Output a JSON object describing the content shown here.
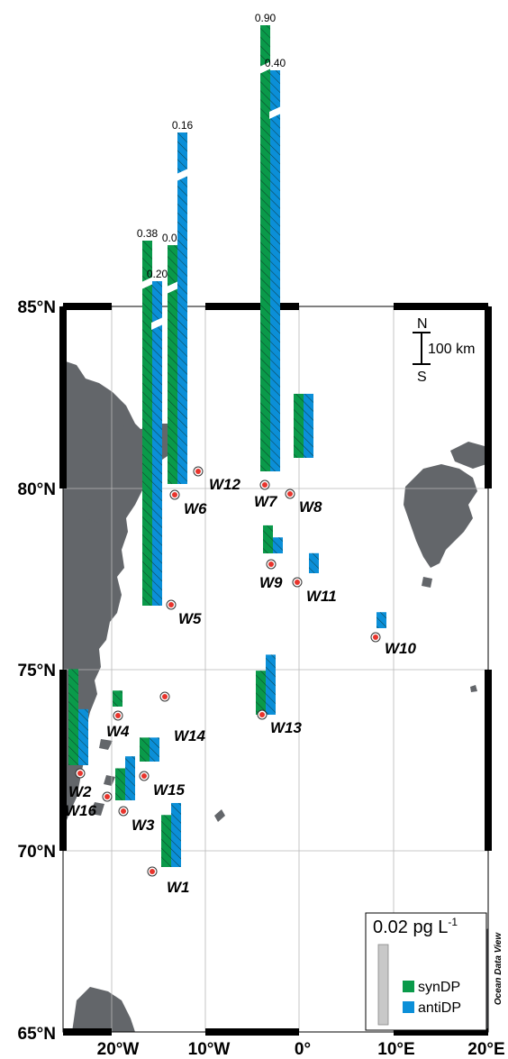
{
  "axes": {
    "lat_labels": [
      "65°N",
      "70°N",
      "75°N",
      "80°N",
      "85°N"
    ],
    "lon_labels": [
      "20°W",
      "10°W",
      "0°",
      "10°E",
      "20°E"
    ]
  },
  "stations": [
    {
      "id": "W1"
    },
    {
      "id": "W2"
    },
    {
      "id": "W3"
    },
    {
      "id": "W4"
    },
    {
      "id": "W5"
    },
    {
      "id": "W6"
    },
    {
      "id": "W7"
    },
    {
      "id": "W8"
    },
    {
      "id": "W9"
    },
    {
      "id": "W10"
    },
    {
      "id": "W11"
    },
    {
      "id": "W12"
    },
    {
      "id": "W13"
    },
    {
      "id": "W14"
    },
    {
      "id": "W15"
    },
    {
      "id": "W16"
    }
  ],
  "chart_data": {
    "type": "bar",
    "unit": "pg L-1",
    "series": [
      {
        "name": "synDP"
      },
      {
        "name": "antiDP"
      }
    ],
    "bars": [
      {
        "station": "W5",
        "synDP": 0.38,
        "antiDP": 0.2
      },
      {
        "station": "W6",
        "synDP": 0.09,
        "antiDP": 0.16
      },
      {
        "station": "W7",
        "synDP": 0.9,
        "antiDP": 0.4
      },
      {
        "station": "W8",
        "synDP": 0.016,
        "antiDP": 0.016
      },
      {
        "station": "W9",
        "synDP": 0.007,
        "antiDP": 0.004
      },
      {
        "station": "W11",
        "synDP": 0.0,
        "antiDP": 0.005
      },
      {
        "station": "W10",
        "synDP": 0.0,
        "antiDP": 0.004
      },
      {
        "station": "W4",
        "synDP": 0.004,
        "antiDP": 0.0
      },
      {
        "station": "W13",
        "synDP": 0.011,
        "antiDP": 0.015
      },
      {
        "station": "W15",
        "synDP": 0.006,
        "antiDP": 0.006
      },
      {
        "station": "W2",
        "synDP": 0.024,
        "antiDP": 0.014
      },
      {
        "station": "W16",
        "synDP": 0.008,
        "antiDP": 0.011
      },
      {
        "station": "W1",
        "synDP": 0.013,
        "antiDP": 0.016
      }
    ],
    "value_labels": [
      "0.90",
      "0.40",
      "0.16",
      "0.38",
      "0.09",
      "0.20"
    ]
  },
  "scale": {
    "north": "N",
    "south": "S",
    "distance": "100 km"
  },
  "legend": {
    "title": "0.02 pg L",
    "title_sup": "-1",
    "items": [
      {
        "label": "synDP",
        "color": "#0a9a4a"
      },
      {
        "label": "antiDP",
        "color": "#0b8fd8"
      }
    ]
  },
  "credit": "Ocean Data View",
  "colors": {
    "syn": "#0a9a4a",
    "anti": "#0b8fd8",
    "land": "#63666a",
    "station": "#e8342c"
  }
}
